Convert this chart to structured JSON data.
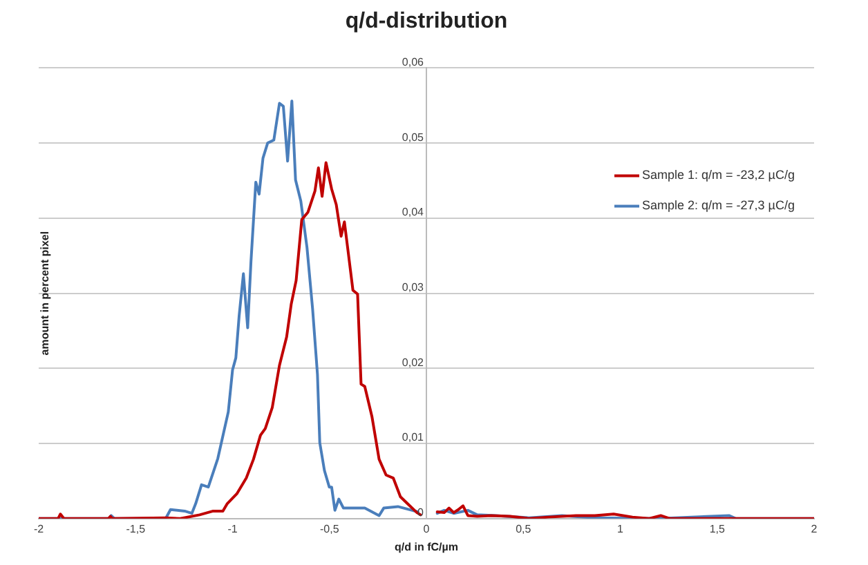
{
  "chart_data": {
    "type": "line",
    "title": "q/d-distribution",
    "xlabel": "q/d in fC/µm",
    "ylabel": "amount in percent pixel",
    "xlim": [
      -2,
      2
    ],
    "xticks": [
      -2,
      {
        "value": -1.5,
        "label": "-1,5"
      },
      -1,
      {
        "value": -0.5,
        "label": "-0,5"
      },
      0,
      {
        "value": 0.5,
        "label": "0,5"
      },
      1,
      {
        "value": 1.5,
        "label": "1,5"
      },
      2
    ],
    "ylim": [
      0,
      0.06
    ],
    "yticks": [
      0,
      {
        "value": 0.01,
        "label": "0,01"
      },
      {
        "value": 0.02,
        "label": "0,02"
      },
      {
        "value": 0.03,
        "label": "0,03"
      },
      {
        "value": 0.04,
        "label": "0,04"
      },
      {
        "value": 0.05,
        "label": "0,05"
      },
      {
        "value": 0.06,
        "label": "0,06"
      }
    ],
    "grid": "y",
    "legend": "right",
    "marker": "none",
    "line_style": "solid",
    "series": [
      {
        "name": "Sample 1: q/m = -23,2 µC/g",
        "color": "#c00000",
        "x": [
          -2,
          -1.9,
          -1.888,
          -1.87,
          -1.64,
          -1.63,
          -1.62,
          -1.345,
          -1.27,
          -1.17,
          -1.1,
          -1.05,
          -1.027,
          -0.978,
          -0.929,
          -0.892,
          -0.856,
          -0.831,
          -0.795,
          -0.758,
          -0.721,
          -0.697,
          -0.672,
          -0.643,
          -0.611,
          -0.575,
          -0.557,
          -0.538,
          -0.518,
          -0.489,
          -0.465,
          -0.44,
          -0.423,
          -0.403,
          -0.379,
          -0.355,
          -0.337,
          -0.318,
          -0.281,
          -0.244,
          -0.208,
          -0.171,
          -0.134,
          -0.098,
          -0.061,
          -0.049,
          -0.03,
          0,
          0.056,
          0.092,
          0.117,
          0.141,
          0.165,
          0.189,
          0.214,
          0.262,
          0.335,
          0.432,
          0.529,
          0.63,
          0.772,
          0.869,
          0.966,
          1.063,
          1.15,
          1.209,
          1.257,
          2
        ],
        "values": [
          0,
          0,
          0.0006,
          0,
          0,
          0.0003,
          0,
          0.0001,
          0,
          0.0005,
          0.001,
          0.001,
          0.002,
          0.0033,
          0.0054,
          0.0079,
          0.0111,
          0.012,
          0.0148,
          0.0204,
          0.0242,
          0.0286,
          0.0317,
          0.0398,
          0.0408,
          0.0436,
          0.0467,
          0.0429,
          0.0474,
          0.0439,
          0.0418,
          0.0376,
          0.0395,
          0.0354,
          0.0304,
          0.0299,
          0.0179,
          0.0176,
          0.0136,
          0.0079,
          0.0058,
          0.0054,
          0.0029,
          0.002,
          0.0011,
          0.0008,
          0.0005,
          null,
          0.0009,
          0.0008,
          0.0014,
          0.0008,
          0.0012,
          0.0017,
          0.0004,
          0.0003,
          0.0004,
          0.0003,
          0,
          0.0002,
          0.0004,
          0.0004,
          0.0006,
          0.0002,
          0,
          0.0004,
          0,
          0
        ]
      },
      {
        "name": "Sample 2: q/m = -27,3 µC/g",
        "color": "#4a7ebb",
        "x": [
          -2,
          -1.64,
          -1.626,
          -1.61,
          -1.345,
          -1.32,
          -1.247,
          -1.21,
          -1.19,
          -1.16,
          -1.125,
          -1.076,
          -1.022,
          -1,
          -0.983,
          -0.966,
          -0.944,
          -0.922,
          -0.905,
          -0.88,
          -0.863,
          -0.843,
          -0.819,
          -0.787,
          -0.758,
          -0.738,
          -0.716,
          -0.694,
          -0.675,
          -0.648,
          -0.616,
          -0.587,
          -0.562,
          -0.55,
          -0.526,
          -0.501,
          -0.489,
          -0.472,
          -0.452,
          -0.428,
          -0.367,
          -0.318,
          -0.244,
          -0.22,
          -0.147,
          -0.073,
          -0.044,
          0,
          0.056,
          0.092,
          0.141,
          0.214,
          0.262,
          0.359,
          0.529,
          0.699,
          0.869,
          1.2,
          1.561,
          1.597,
          2
        ],
        "values": [
          0,
          0,
          0.0004,
          0,
          0,
          0.0012,
          0.001,
          0.0007,
          0.002,
          0.0045,
          0.0042,
          0.008,
          0.0142,
          0.0198,
          0.0214,
          0.027,
          0.0326,
          0.0254,
          0.0342,
          0.0448,
          0.0432,
          0.048,
          0.05,
          0.0504,
          0.0553,
          0.0549,
          0.0476,
          0.0556,
          0.0451,
          0.0423,
          0.0361,
          0.0279,
          0.0192,
          0.0101,
          0.0064,
          0.0042,
          0.0042,
          0.0011,
          0.0026,
          0.0014,
          0.0014,
          0.0014,
          0.0004,
          0.0014,
          0.0016,
          0.0011,
          0.0009,
          null,
          0.0007,
          0.0011,
          0.0007,
          0.0011,
          0.0005,
          0.0004,
          0.0001,
          0.0004,
          0.0001,
          0,
          0.0004,
          0,
          0
        ]
      }
    ]
  }
}
